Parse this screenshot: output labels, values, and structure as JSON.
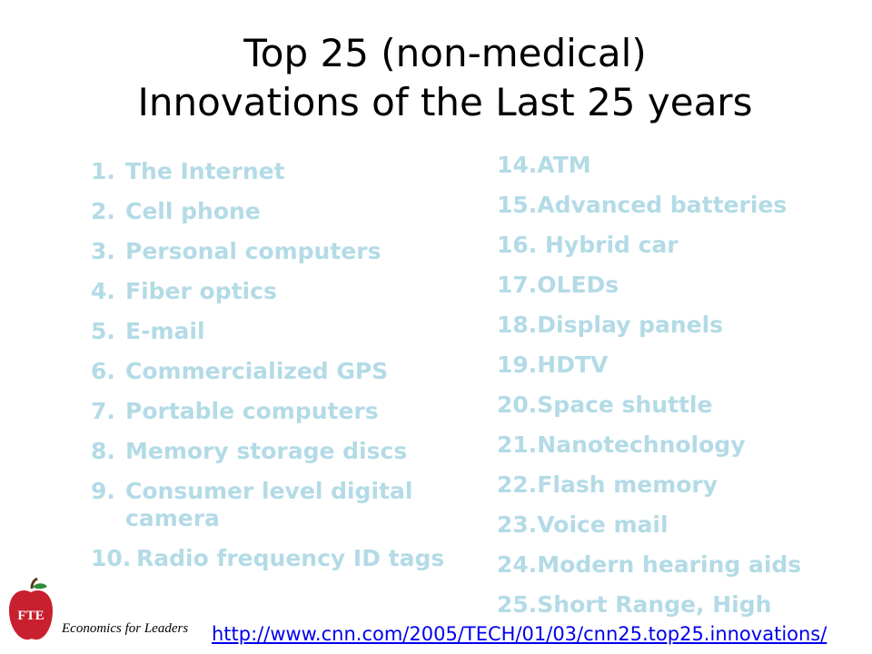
{
  "title": {
    "line1": "Top 25 (non-medical)",
    "line2": "Innovations of the Last 25 years"
  },
  "list_left": [
    {
      "num": "1.",
      "text": "The Internet"
    },
    {
      "num": "2.",
      "text": "Cell phone"
    },
    {
      "num": "3.",
      "text": "Personal computers"
    },
    {
      "num": "4.",
      "text": "Fiber optics"
    },
    {
      "num": "5.",
      "text": "E-mail"
    },
    {
      "num": "6.",
      "text": "Commercialized GPS"
    },
    {
      "num": "7.",
      "text": "Portable computers"
    },
    {
      "num": "8.",
      "text": "Memory storage discs"
    },
    {
      "num": "9.",
      "text": "Consumer level digital camera"
    },
    {
      "num": "10.",
      "text": "Radio frequency ID tags"
    }
  ],
  "list_right": [
    {
      "num": "14.",
      "text": "ATM"
    },
    {
      "num": "15.",
      "text": "Advanced batteries"
    },
    {
      "num": "16. ",
      "text": "Hybrid car"
    },
    {
      "num": "17.",
      "text": "OLEDs"
    },
    {
      "num": "18.",
      "text": "Display panels"
    },
    {
      "num": "19.",
      "text": "HDTV"
    },
    {
      "num": "20.",
      "text": "Space shuttle"
    },
    {
      "num": "21.",
      "text": "Nanotechnology"
    },
    {
      "num": "22.",
      "text": "Flash memory"
    },
    {
      "num": "23.",
      "text": "Voice mail"
    },
    {
      "num": "24.",
      "text": "Modern hearing aids"
    },
    {
      "num": "25.",
      "text": "Short Range, High"
    }
  ],
  "footer": {
    "logo_text": "FTE",
    "org": "Economics for Leaders",
    "url": "http://www.cnn.com/2005/TECH/01/03/cnn25.top25.innovations/"
  },
  "colors": {
    "list_text": "#b3dbe6",
    "apple": "#c8202f",
    "link": "#0000ee"
  }
}
